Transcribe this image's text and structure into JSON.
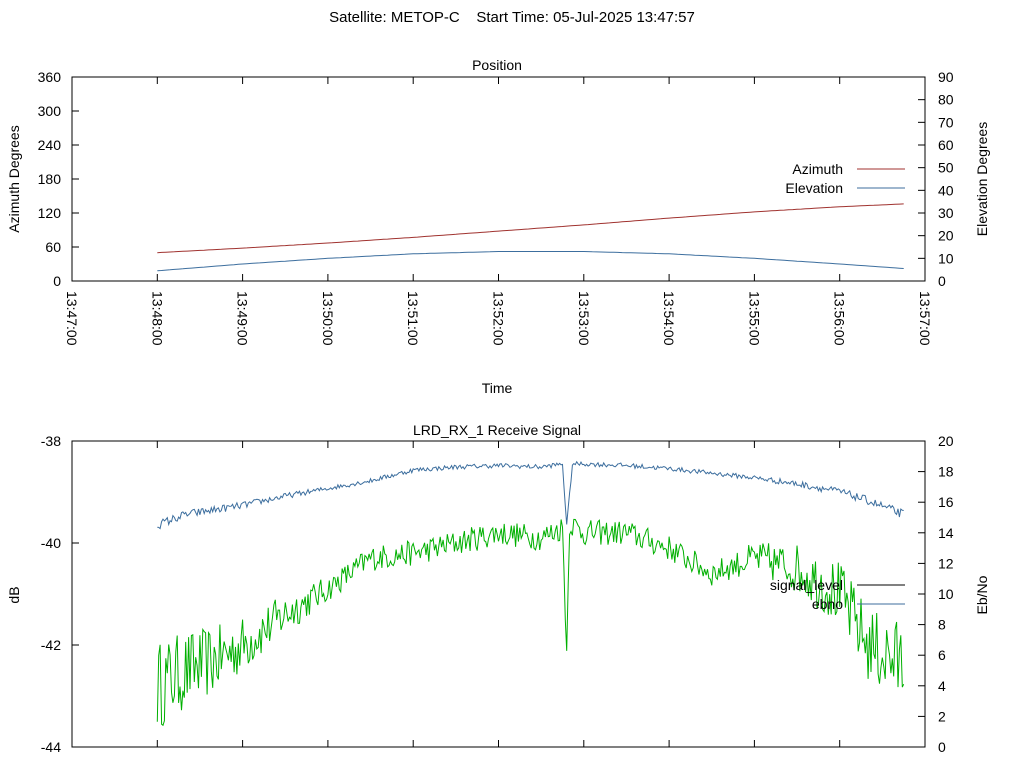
{
  "figure": {
    "title": "Satellite: METOP-C    Start Time: 05-Jul-2025 13:47:57"
  },
  "chart_data": [
    {
      "type": "line",
      "title": "Position",
      "xlabel": "Time",
      "ylabel": "Azimuth Degrees",
      "y2label": "Elevation Degrees",
      "xlim": [
        "13:47:00",
        "13:57:00"
      ],
      "ylim": [
        0,
        360
      ],
      "y2lim": [
        0,
        90
      ],
      "yticks": [
        "0",
        "60",
        "120",
        "180",
        "240",
        "300",
        "360"
      ],
      "y2ticks": [
        "0",
        "10",
        "20",
        "30",
        "40",
        "50",
        "60",
        "70",
        "80",
        "90"
      ],
      "xticks": [
        "13:47:00",
        "13:48:00",
        "13:49:00",
        "13:50:00",
        "13:51:00",
        "13:52:00",
        "13:53:00",
        "13:54:00",
        "13:55:00",
        "13:56:00",
        "13:57:00"
      ],
      "legend_position": "right",
      "series": [
        {
          "name": "Azimuth",
          "axis": "left",
          "color": "#a0322f",
          "x": [
            "13:48:00",
            "13:49:00",
            "13:50:00",
            "13:51:00",
            "13:52:00",
            "13:53:00",
            "13:54:00",
            "13:55:00",
            "13:56:00",
            "13:56:45"
          ],
          "values": [
            50,
            58,
            67,
            77,
            88,
            99,
            111,
            122,
            131,
            136
          ]
        },
        {
          "name": "Elevation",
          "axis": "right",
          "color": "#3c6e9e",
          "x": [
            "13:48:00",
            "13:49:00",
            "13:50:00",
            "13:51:00",
            "13:52:00",
            "13:53:00",
            "13:54:00",
            "13:55:00",
            "13:56:00",
            "13:56:45"
          ],
          "values": [
            4.5,
            7.5,
            10,
            12,
            13,
            13,
            12,
            10,
            7.5,
            5.5
          ]
        }
      ]
    },
    {
      "type": "line",
      "title": "LRD_RX_1 Receive Signal",
      "ylabel": "dB",
      "y2label": "Eb/No",
      "ylim": [
        -44,
        -38
      ],
      "y2lim": [
        0,
        20
      ],
      "yticks": [
        "-44",
        "-42",
        "-40",
        "-38"
      ],
      "y2ticks": [
        "0",
        "2",
        "4",
        "6",
        "8",
        "10",
        "12",
        "14",
        "16",
        "18",
        "20"
      ],
      "legend_position": "right",
      "series": [
        {
          "name": "signal_level",
          "axis": "left",
          "color": "#00b000",
          "legend_color": "#000000",
          "x": [
            "13:48:00",
            "13:48:20",
            "13:48:40",
            "13:49:00",
            "13:49:30",
            "13:50:00",
            "13:50:30",
            "13:51:00",
            "13:51:30",
            "13:52:00",
            "13:52:30",
            "13:52:45",
            "13:52:48",
            "13:52:50",
            "13:53:00",
            "13:53:30",
            "13:54:00",
            "13:54:30",
            "13:55:00",
            "13:55:30",
            "13:56:00",
            "13:56:20",
            "13:56:45"
          ],
          "values": [
            -42.8,
            -42.5,
            -42.3,
            -42.0,
            -41.4,
            -40.9,
            -40.3,
            -40.2,
            -40.0,
            -39.8,
            -39.9,
            -39.7,
            -42.1,
            -39.6,
            -39.8,
            -39.8,
            -40.1,
            -40.6,
            -40.3,
            -40.5,
            -41.0,
            -42.0,
            -42.4
          ]
        },
        {
          "name": "ebno",
          "axis": "right",
          "color": "#3c6e9e",
          "legend_color": "#3c6e9e",
          "x": [
            "13:48:00",
            "13:48:20",
            "13:48:40",
            "13:49:00",
            "13:49:30",
            "13:50:00",
            "13:50:30",
            "13:51:00",
            "13:51:30",
            "13:52:00",
            "13:52:30",
            "13:52:45",
            "13:52:48",
            "13:52:52",
            "13:53:00",
            "13:53:30",
            "13:54:00",
            "13:54:30",
            "13:55:00",
            "13:55:30",
            "13:56:00",
            "13:56:20",
            "13:56:45"
          ],
          "values": [
            14.5,
            15.2,
            15.5,
            15.8,
            16.4,
            16.9,
            17.4,
            18.1,
            18.3,
            18.4,
            18.3,
            18.5,
            14.5,
            18.5,
            18.5,
            18.4,
            18.2,
            17.9,
            17.6,
            17.2,
            16.7,
            16.1,
            15.2
          ]
        }
      ]
    }
  ]
}
